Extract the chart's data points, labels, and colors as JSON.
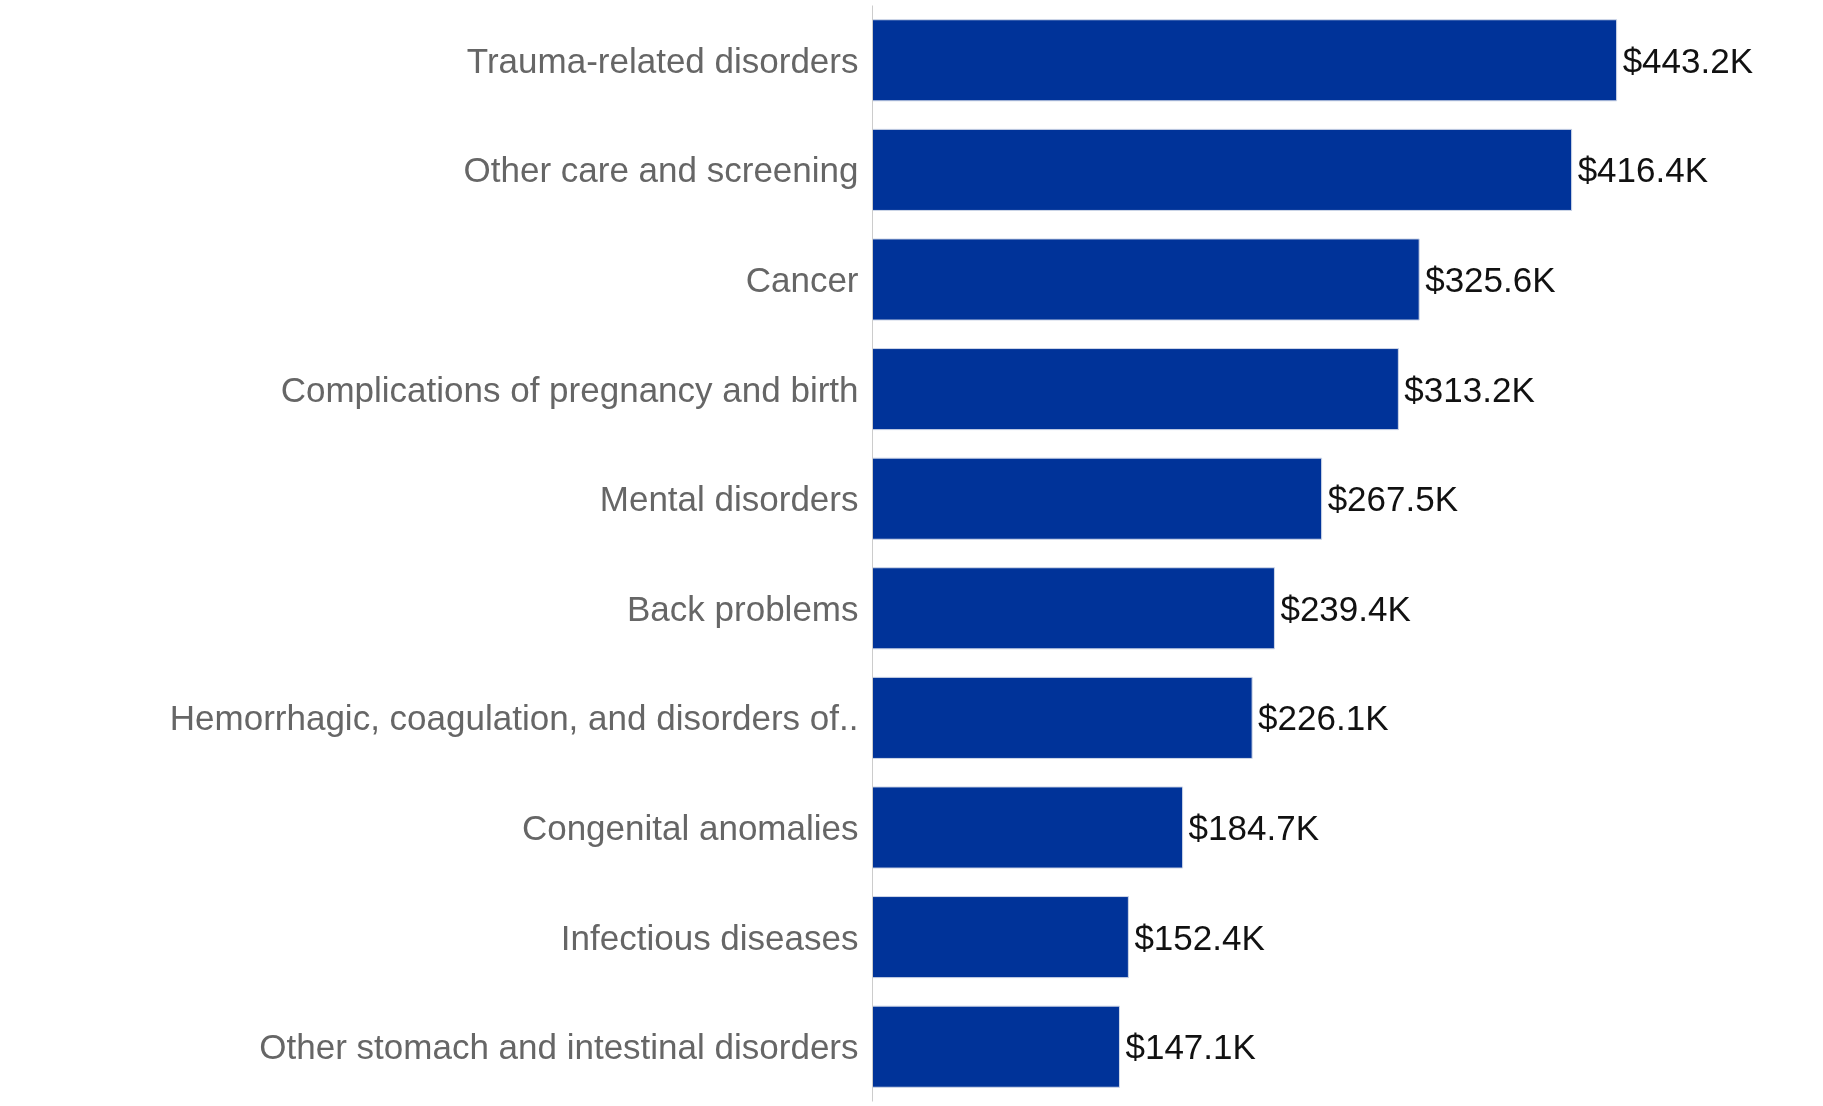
{
  "chart_data": {
    "type": "bar",
    "orientation": "horizontal",
    "categories": [
      "Trauma-related disorders",
      "Other care and screening",
      "Cancer",
      "Complications of pregnancy and birth",
      "Mental disorders",
      "Back problems",
      "Hemorrhagic, coagulation, and disorders of..",
      "Congenital anomalies",
      "Infectious diseases",
      "Other stomach and intestinal disorders"
    ],
    "values": [
      443.2,
      416.4,
      325.6,
      313.2,
      267.5,
      239.4,
      226.1,
      184.7,
      152.4,
      147.1
    ],
    "value_labels": [
      "$443.2K",
      "$416.4K",
      "$325.6K",
      "$313.2K",
      "$267.5K",
      "$239.4K",
      "$226.1K",
      "$184.7K",
      "$152.4K",
      "$147.1K"
    ],
    "color": "#003399",
    "grid": false
  }
}
